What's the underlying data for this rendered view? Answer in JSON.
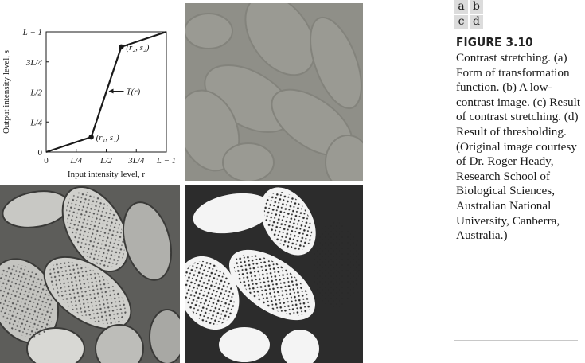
{
  "figure": {
    "panel_labels": [
      "a",
      "b",
      "c",
      "d"
    ],
    "number": "FIGURE 3.10",
    "caption": "Contrast stretching. (a) Form of transformation function. (b) A low-contrast image. (c) Result of contrast stretching. (d) Result of thresholding. (Original image courtesy of Dr. Roger Heady, Research School of Biological Sciences, Australian National University, Canberra, Australia.)"
  },
  "chart_data": {
    "type": "line",
    "xlabel": "Input intensity level, r",
    "ylabel": "Output intensity level, s",
    "x_ticks": [
      "0",
      "L/4",
      "L/2",
      "3L/4",
      "L − 1"
    ],
    "y_ticks": [
      "0",
      "L/4",
      "L/2",
      "3L/4",
      "L − 1"
    ],
    "xlim": [
      0,
      1
    ],
    "ylim": [
      0,
      1
    ],
    "grid": false,
    "series": [
      {
        "name": "T(r)",
        "x": [
          0,
          0.375,
          0.625,
          1
        ],
        "y": [
          0,
          0.125,
          0.875,
          1
        ]
      }
    ],
    "points": [
      {
        "label": "(r₁, s₁)",
        "x": 0.375,
        "y": 0.125
      },
      {
        "label": "(r₂, s₂)",
        "x": 0.625,
        "y": 0.875
      }
    ],
    "curve_label": "T(r)"
  }
}
